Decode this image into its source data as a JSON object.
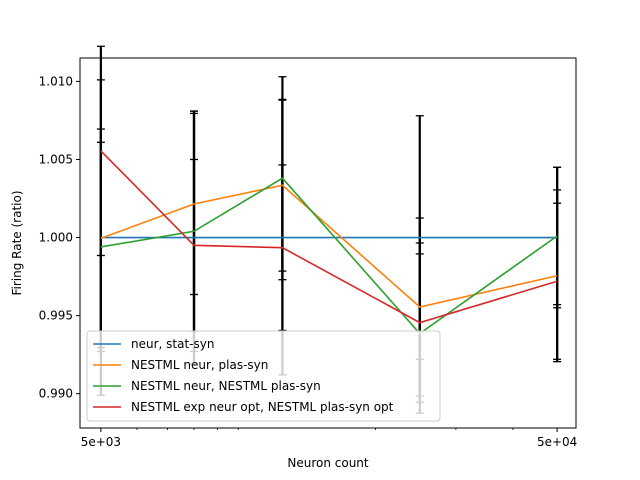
{
  "chart_data": {
    "type": "line",
    "title": "",
    "xlabel": "Neuron count",
    "ylabel": "Firing Rate (ratio)",
    "xscale": "log",
    "xlim": [
      4500,
      55000
    ],
    "ylim": [
      0.9878,
      1.0115
    ],
    "x": [
      5000,
      8000,
      12500,
      25000,
      50000
    ],
    "x_ticks": [
      {
        "value": 5000,
        "label": "5e+03"
      },
      {
        "value": 50000,
        "label": "5e+04"
      }
    ],
    "y_ticks": [
      {
        "value": 0.99,
        "label": "0.990"
      },
      {
        "value": 0.995,
        "label": "0.995"
      },
      {
        "value": 1.0,
        "label": "1.000"
      },
      {
        "value": 1.005,
        "label": "1.005"
      },
      {
        "value": 1.01,
        "label": "1.010"
      }
    ],
    "legend_position": "lower-left",
    "series": [
      {
        "name": "neur, stat-syn",
        "color": "#1f77b4",
        "values": [
          1.0,
          1.0,
          1.0,
          1.0,
          1.0
        ],
        "errors": [
          0.0101,
          0.0081,
          0.0088,
          0.0078,
          0.0045
        ]
      },
      {
        "name": "NESTML neur, plas-syn",
        "color": "#ff7f0e",
        "values": [
          0.99995,
          1.00215,
          1.00335,
          0.99555,
          0.99755
        ],
        "errors": [
          0.007,
          0.0058,
          0.0055,
          0.0057,
          0.0055
        ]
      },
      {
        "name": "NESTML neur, NESTML plas-syn",
        "color": "#2ca02c",
        "values": [
          0.9994,
          1.0004,
          1.0038,
          0.99385,
          1.0001
        ],
        "errors": [
          0.0067,
          0.0077,
          0.0065,
          0.0051,
          0.0044
        ]
      },
      {
        "name": "NESTML exp neur opt, NESTML plas-syn opt",
        "color": "#d62728",
        "values": [
          1.00555,
          0.9995,
          0.99935,
          0.99455,
          0.9972
        ],
        "errors": [
          0.0067,
          0.0055,
          0.0053,
          0.0051,
          0.005
        ]
      }
    ]
  }
}
